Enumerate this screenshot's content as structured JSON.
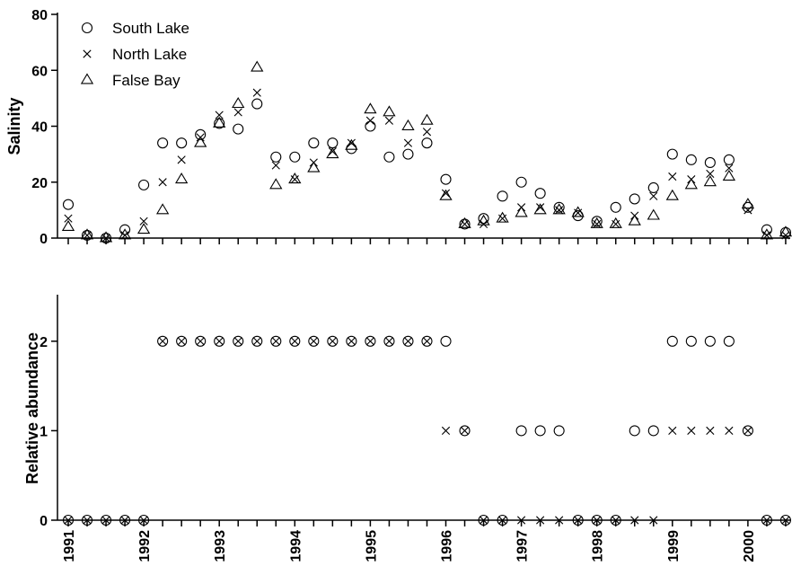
{
  "chart_data": [
    {
      "type": "scatter",
      "ylabel": "Salinity",
      "ylim": [
        0,
        80
      ],
      "yticks": [
        0,
        20,
        40,
        60,
        80
      ],
      "xlim": [
        1991,
        2000.6
      ],
      "legend_position": "top-left",
      "x": [
        1991.0,
        1991.25,
        1991.5,
        1991.75,
        1992.0,
        1992.25,
        1992.5,
        1992.75,
        1993.0,
        1993.25,
        1993.5,
        1993.75,
        1994.0,
        1994.25,
        1994.5,
        1994.75,
        1995.0,
        1995.25,
        1995.5,
        1995.75,
        1996.0,
        1996.25,
        1996.5,
        1996.75,
        1997.0,
        1997.25,
        1997.5,
        1997.75,
        1998.0,
        1998.25,
        1998.5,
        1998.75,
        1999.0,
        1999.25,
        1999.5,
        1999.75,
        2000.0,
        2000.25,
        2000.5
      ],
      "series": [
        {
          "name": "South Lake",
          "marker": "circle",
          "values": [
            12,
            1,
            0,
            3,
            19,
            34,
            34,
            37,
            41,
            39,
            48,
            29,
            29,
            34,
            34,
            32,
            40,
            29,
            30,
            34,
            21,
            5,
            7,
            15,
            20,
            16,
            11,
            8,
            6,
            11,
            14,
            18,
            30,
            28,
            27,
            28,
            11,
            3,
            2
          ]
        },
        {
          "name": "North Lake",
          "marker": "cross",
          "values": [
            7,
            1,
            0,
            1,
            6,
            20,
            28,
            36,
            44,
            45,
            52,
            26,
            21,
            27,
            31,
            34,
            42,
            42,
            34,
            38,
            16,
            5,
            5,
            7,
            11,
            11,
            10,
            9,
            5,
            5,
            8,
            15,
            22,
            21,
            23,
            25,
            10,
            1,
            1
          ]
        },
        {
          "name": "False Bay",
          "marker": "triangle",
          "values": [
            4,
            1,
            0,
            1,
            3,
            10,
            21,
            34,
            41,
            48,
            61,
            19,
            21,
            25,
            30,
            33,
            46,
            45,
            40,
            42,
            15,
            5,
            6,
            7,
            9,
            10,
            10,
            9,
            5,
            5,
            6,
            8,
            15,
            19,
            20,
            22,
            12,
            1,
            2
          ]
        }
      ]
    },
    {
      "type": "scatter",
      "ylabel": "Relative abundance",
      "ylim": [
        0,
        2.5
      ],
      "yticks": [
        0,
        1,
        2
      ],
      "xlim": [
        1991,
        2000.6
      ],
      "xticks": [
        "1991",
        "1992",
        "1993",
        "1994",
        "1995",
        "1996",
        "1997",
        "1998",
        "1999",
        "2000"
      ],
      "x": [
        1991.0,
        1991.25,
        1991.5,
        1991.75,
        1992.0,
        1992.25,
        1992.5,
        1992.75,
        1993.0,
        1993.25,
        1993.5,
        1993.75,
        1994.0,
        1994.25,
        1994.5,
        1994.75,
        1995.0,
        1995.25,
        1995.5,
        1995.75,
        1996.0,
        1996.25,
        1996.5,
        1996.75,
        1997.0,
        1997.25,
        1997.5,
        1997.75,
        1998.0,
        1998.25,
        1998.5,
        1998.75,
        1999.0,
        1999.25,
        1999.5,
        1999.75,
        2000.0,
        2000.25,
        2000.5
      ],
      "series": [
        {
          "name": "South Lake",
          "marker": "circle",
          "values": [
            0,
            0,
            0,
            0,
            0,
            2,
            2,
            2,
            2,
            2,
            2,
            2,
            2,
            2,
            2,
            2,
            2,
            2,
            2,
            2,
            2,
            1,
            0,
            0,
            1,
            1,
            1,
            0,
            0,
            0,
            1,
            1,
            2,
            2,
            2,
            2,
            1,
            0,
            0
          ]
        },
        {
          "name": "North Lake",
          "marker": "cross",
          "values": [
            0,
            0,
            0,
            0,
            0,
            2,
            2,
            2,
            2,
            2,
            2,
            2,
            2,
            2,
            2,
            2,
            2,
            2,
            2,
            2,
            1,
            1,
            0,
            0,
            0,
            0,
            0,
            0,
            0,
            0,
            0,
            0,
            1,
            1,
            1,
            1,
            1,
            0,
            0
          ]
        }
      ]
    }
  ]
}
